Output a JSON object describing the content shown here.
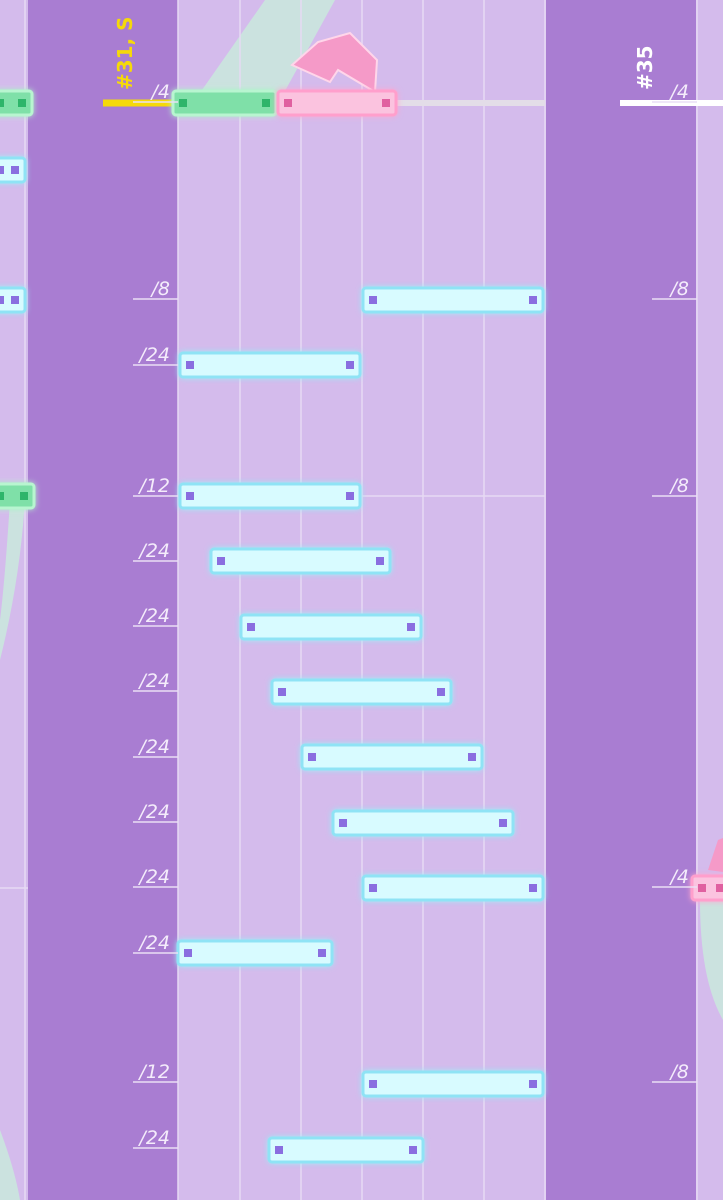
{
  "section_markers": [
    {
      "label": "#31, S",
      "color": "#f5d90a"
    },
    {
      "label": "#35",
      "color": "#ffffff"
    }
  ],
  "left_divisions": [
    "/4",
    "/8",
    "/24",
    "/12",
    "/24",
    "/24",
    "/24",
    "/24",
    "/24",
    "/24",
    "/24",
    "/12",
    "/24"
  ],
  "right_divisions": [
    "/4",
    "/8",
    "/8",
    "/4",
    "/8"
  ]
}
